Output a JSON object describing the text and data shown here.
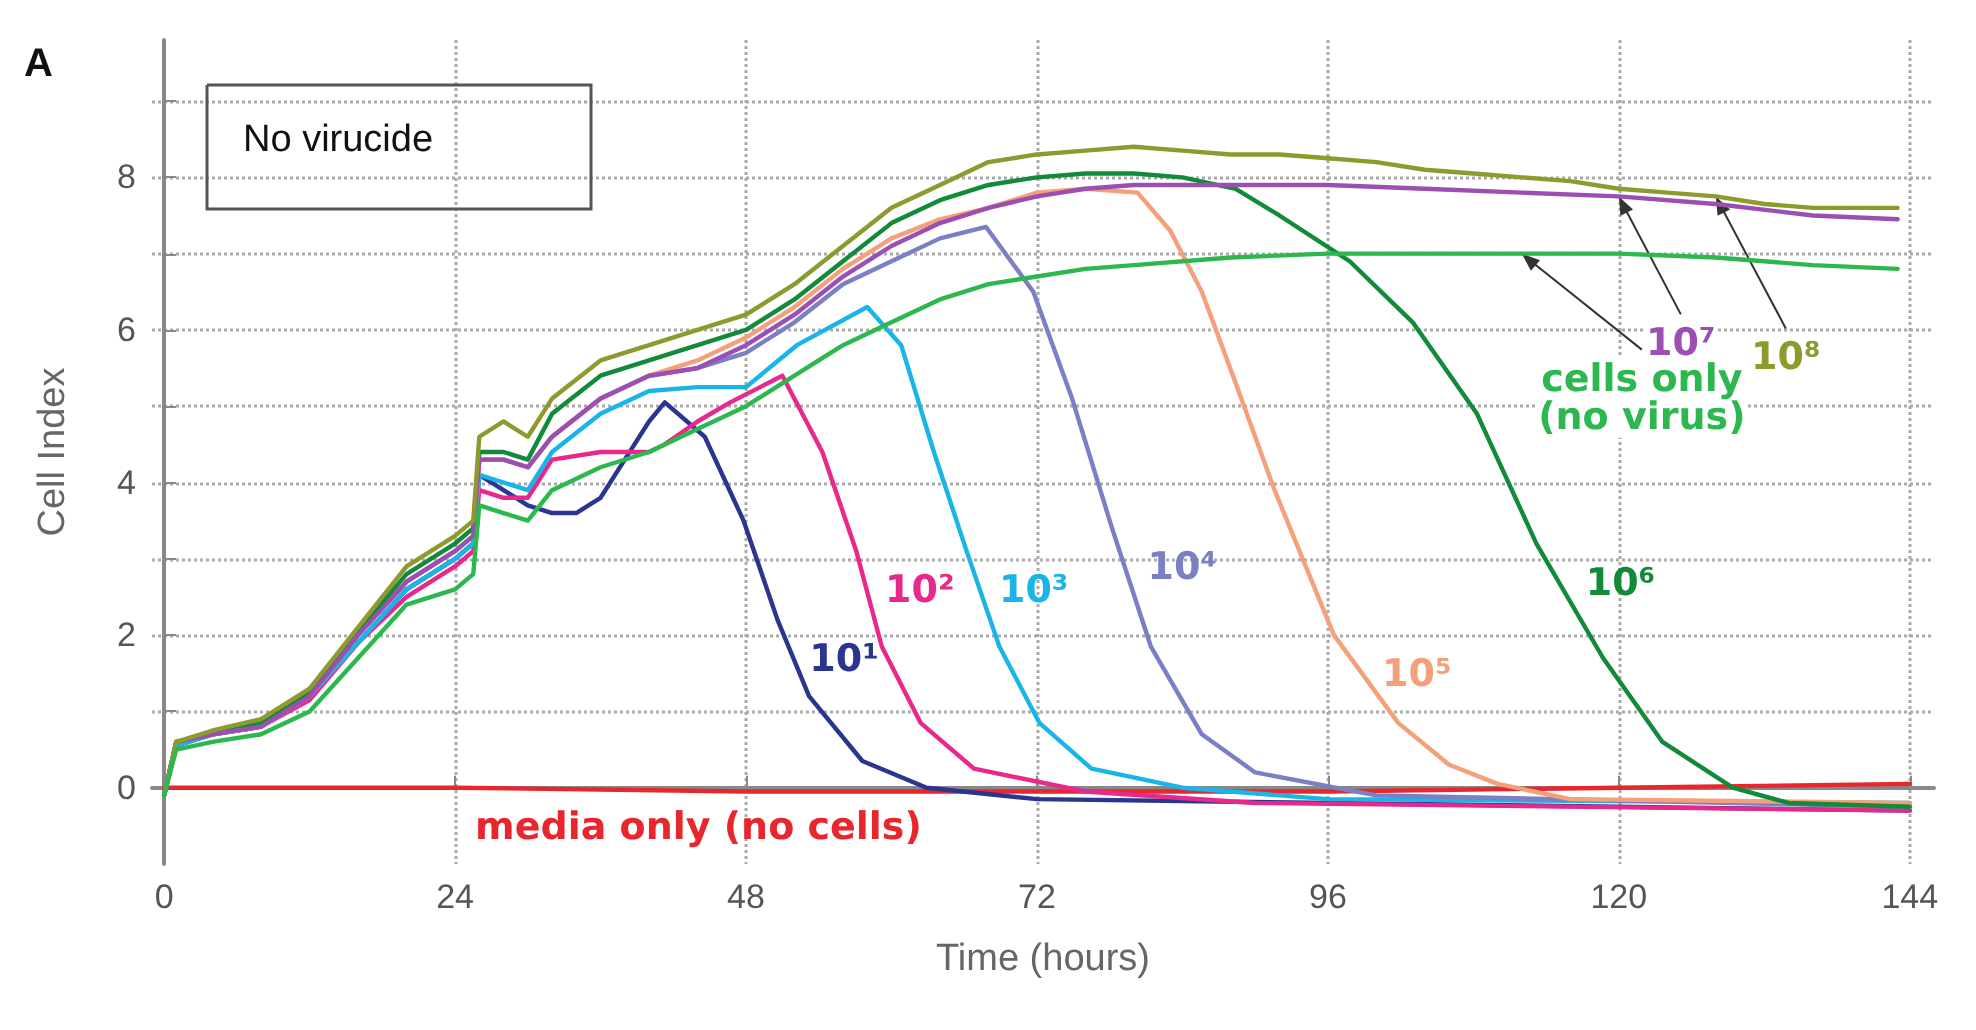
{
  "chart_data": {
    "type": "line",
    "xlabel": "Time (hours)",
    "ylabel": "Cell Index",
    "xlim": [
      -1,
      146
    ],
    "ylim": [
      -1,
      9.8
    ],
    "xticks": [
      0,
      24,
      48,
      72,
      96,
      120,
      144
    ],
    "yticks": [
      0,
      {
        "value": 1,
        "label": null
      },
      2,
      {
        "value": 3,
        "label": null
      },
      4,
      {
        "value": 5,
        "label": null
      },
      6,
      {
        "value": 7,
        "label": null
      },
      8,
      {
        "value": 9,
        "label": null
      }
    ],
    "grid": true,
    "line_style": "solid",
    "series": [
      {
        "name": "media only (no cells)",
        "color": "#e8262d",
        "x": [
          0,
          24,
          48,
          72,
          96,
          120,
          144
        ],
        "values": [
          0.0,
          0.0,
          -0.05,
          -0.05,
          -0.05,
          0.0,
          0.05
        ]
      },
      {
        "name": "10¹",
        "color": "#2a3590",
        "x": [
          0,
          1,
          4,
          8,
          12,
          16,
          20,
          24,
          25.5,
          26,
          28,
          30,
          32,
          34,
          36,
          38,
          40,
          41.3,
          44.6,
          47.8,
          50.6,
          53.2,
          57.6,
          62.9,
          72,
          144
        ],
        "values": [
          -0.1,
          0.55,
          0.7,
          0.8,
          1.2,
          1.9,
          2.6,
          3.0,
          3.2,
          4.1,
          3.9,
          3.7,
          3.6,
          3.6,
          3.8,
          4.3,
          4.8,
          5.05,
          4.6,
          3.5,
          2.2,
          1.2,
          0.35,
          0.0,
          -0.15,
          -0.3
        ]
      },
      {
        "name": "10²",
        "color": "#e8288a",
        "x": [
          4,
          8,
          12,
          16,
          20,
          24,
          25.5,
          26,
          28,
          30,
          32,
          36,
          40,
          41.3,
          44,
          46.7,
          51,
          54.3,
          57.1,
          59.2,
          62.4,
          66.8,
          76,
          90,
          144
        ],
        "values": [
          0.7,
          0.8,
          1.15,
          1.9,
          2.5,
          2.9,
          3.1,
          3.9,
          3.8,
          3.8,
          4.3,
          4.4,
          4.4,
          4.5,
          4.8,
          5.05,
          5.4,
          4.4,
          3.1,
          1.85,
          0.85,
          0.25,
          -0.05,
          -0.2,
          -0.3
        ]
      },
      {
        "name": "10³",
        "color": "#19b5e8",
        "x": [
          0,
          1,
          4,
          8,
          12,
          16,
          20,
          24,
          25.5,
          26,
          28,
          30,
          32,
          36,
          40,
          44,
          48,
          52.2,
          58,
          60.8,
          63.5,
          66.2,
          68.9,
          72.2,
          76.5,
          84,
          96,
          144
        ],
        "values": [
          -0.1,
          0.55,
          0.7,
          0.8,
          1.2,
          1.9,
          2.6,
          3.0,
          3.2,
          4.1,
          4.0,
          3.9,
          4.4,
          4.9,
          5.2,
          5.25,
          5.25,
          5.8,
          6.3,
          5.8,
          4.4,
          3.1,
          1.85,
          0.85,
          0.25,
          0.0,
          -0.15,
          -0.2
        ]
      },
      {
        "name": "10⁴",
        "color": "#7b7fc4",
        "x": [
          0,
          1,
          4,
          8,
          12,
          16,
          20,
          24,
          25.5,
          26,
          28,
          30,
          32,
          36,
          40,
          44,
          48,
          52,
          56,
          60,
          64,
          67.8,
          71.7,
          74.9,
          78.2,
          81.4,
          85.6,
          90,
          100,
          144
        ],
        "values": [
          -0.1,
          0.6,
          0.7,
          0.8,
          1.2,
          2.0,
          2.7,
          3.1,
          3.3,
          4.3,
          4.3,
          4.2,
          4.6,
          5.1,
          5.4,
          5.5,
          5.7,
          6.1,
          6.6,
          6.9,
          7.2,
          7.35,
          6.5,
          5.1,
          3.4,
          1.85,
          0.7,
          0.2,
          -0.1,
          -0.25
        ]
      },
      {
        "name": "10⁵",
        "color": "#f4a07a",
        "x": [
          0,
          1,
          4,
          8,
          12,
          16,
          20,
          24,
          25.5,
          26,
          28,
          30,
          32,
          36,
          40,
          44,
          48,
          52,
          56,
          60,
          64,
          68,
          72,
          76,
          80.3,
          83,
          85.6,
          88.4,
          91.6,
          96.5,
          101.8,
          106,
          110,
          116,
          144
        ],
        "values": [
          -0.1,
          0.6,
          0.7,
          0.8,
          1.2,
          2.0,
          2.7,
          3.1,
          3.3,
          4.3,
          4.3,
          4.2,
          4.6,
          5.1,
          5.4,
          5.6,
          5.9,
          6.3,
          6.8,
          7.2,
          7.45,
          7.6,
          7.8,
          7.85,
          7.8,
          7.3,
          6.5,
          5.3,
          3.9,
          2.0,
          0.85,
          0.3,
          0.05,
          -0.15,
          -0.2
        ]
      },
      {
        "name": "10⁶",
        "color": "#128a3a",
        "x": [
          0,
          1,
          4,
          8,
          12,
          16,
          20,
          24,
          25.5,
          26,
          28,
          30,
          32,
          36,
          40,
          44,
          48,
          52,
          56,
          60,
          64,
          68,
          72,
          76,
          80,
          84,
          88.4,
          92,
          97.8,
          103,
          108.3,
          113.2,
          118.7,
          123.6,
          129.4,
          134,
          144
        ],
        "values": [
          -0.1,
          0.6,
          0.7,
          0.85,
          1.25,
          2.05,
          2.8,
          3.2,
          3.4,
          4.4,
          4.4,
          4.3,
          4.9,
          5.4,
          5.6,
          5.8,
          6.0,
          6.4,
          6.9,
          7.4,
          7.7,
          7.9,
          8.0,
          8.05,
          8.05,
          8.0,
          7.85,
          7.5,
          6.9,
          6.1,
          4.9,
          3.2,
          1.7,
          0.6,
          0.0,
          -0.2,
          -0.25
        ]
      },
      {
        "name": "10⁷",
        "color": "#9b4fb3",
        "x": [
          0,
          1,
          4,
          8,
          12,
          16,
          20,
          24,
          25.5,
          26,
          28,
          30,
          32,
          36,
          40,
          44,
          48,
          52,
          56,
          60,
          64,
          68,
          72,
          76,
          80,
          88,
          96,
          104,
          112,
          120,
          128,
          136,
          143
        ],
        "values": [
          -0.1,
          0.6,
          0.7,
          0.8,
          1.2,
          2.0,
          2.7,
          3.1,
          3.3,
          4.3,
          4.3,
          4.2,
          4.6,
          5.1,
          5.4,
          5.5,
          5.8,
          6.2,
          6.7,
          7.1,
          7.4,
          7.6,
          7.75,
          7.85,
          7.9,
          7.9,
          7.9,
          7.85,
          7.8,
          7.75,
          7.65,
          7.5,
          7.45
        ]
      },
      {
        "name": "10⁸",
        "color": "#8f9a2e",
        "x": [
          0,
          1,
          4,
          8,
          12,
          16,
          20,
          24,
          25.5,
          26,
          28,
          30,
          32,
          36,
          40,
          44,
          48,
          52,
          56,
          60,
          64,
          68,
          72,
          76,
          80,
          84,
          88,
          92,
          96,
          100,
          104,
          108,
          112,
          116,
          120,
          124,
          128,
          132,
          136,
          140,
          143
        ],
        "values": [
          -0.1,
          0.6,
          0.75,
          0.9,
          1.3,
          2.1,
          2.9,
          3.3,
          3.5,
          4.6,
          4.8,
          4.6,
          5.1,
          5.6,
          5.8,
          6.0,
          6.2,
          6.6,
          7.1,
          7.6,
          7.9,
          8.2,
          8.3,
          8.35,
          8.4,
          8.35,
          8.3,
          8.3,
          8.25,
          8.2,
          8.1,
          8.05,
          8.0,
          7.95,
          7.85,
          7.8,
          7.75,
          7.65,
          7.6,
          7.6,
          7.6
        ]
      },
      {
        "name": "cells only\n(no virus)",
        "color": "#2cb84e",
        "x": [
          0,
          1,
          4,
          8,
          12,
          16,
          20,
          24,
          25.5,
          26,
          28,
          30,
          32,
          36,
          40,
          44,
          48,
          52,
          56,
          60,
          64,
          68,
          72,
          76,
          80,
          88,
          96,
          104,
          112,
          120,
          128,
          136,
          143
        ],
        "values": [
          -0.1,
          0.5,
          0.6,
          0.7,
          1.0,
          1.7,
          2.4,
          2.6,
          2.8,
          3.7,
          3.6,
          3.5,
          3.9,
          4.2,
          4.4,
          4.7,
          5.0,
          5.4,
          5.8,
          6.1,
          6.4,
          6.6,
          6.7,
          6.8,
          6.85,
          6.95,
          7.0,
          7.0,
          7.0,
          7.0,
          6.95,
          6.85,
          6.8
        ]
      }
    ],
    "annotations": [
      "A",
      "No virucide"
    ]
  }
}
